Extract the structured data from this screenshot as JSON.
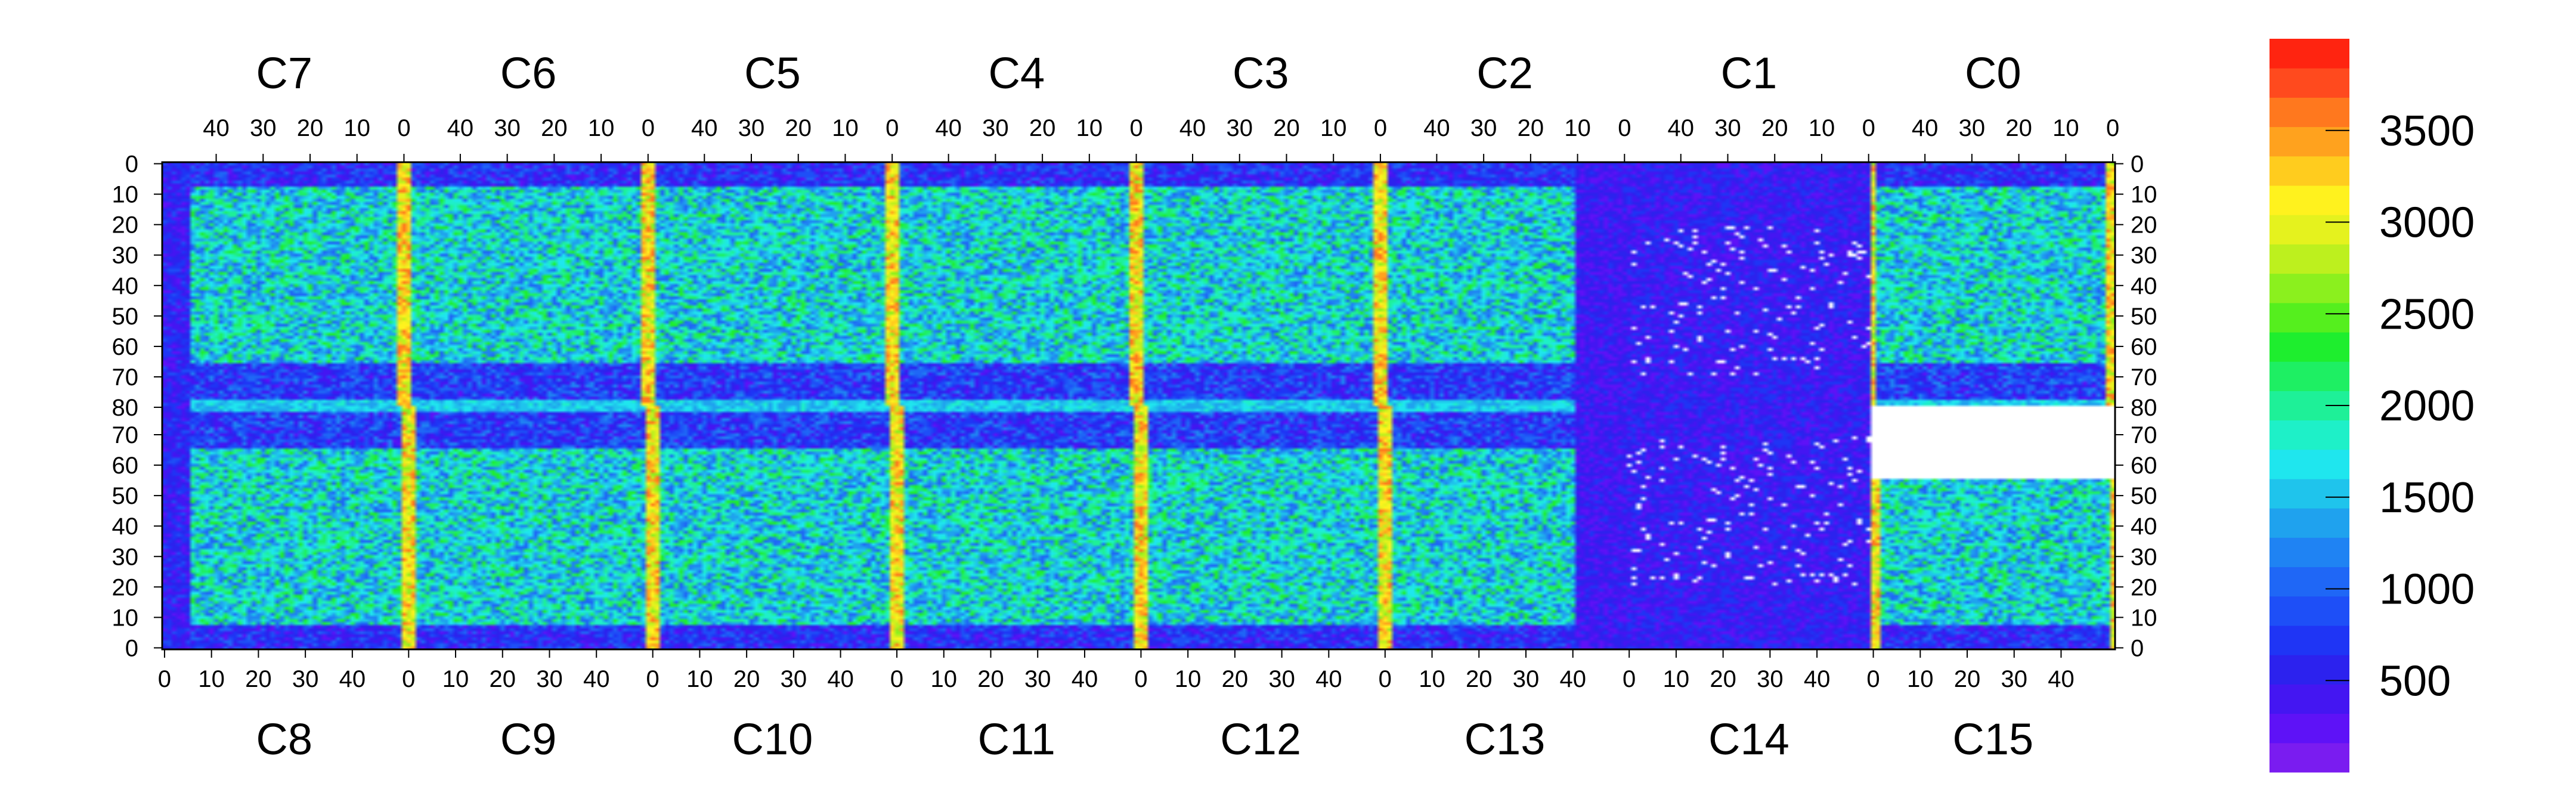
{
  "chart_data": {
    "type": "heatmap",
    "title": "",
    "xlabel": "",
    "ylabel": "",
    "top_chip_labels": [
      "C7",
      "C6",
      "C5",
      "C4",
      "C3",
      "C2",
      "C1",
      "C0"
    ],
    "bottom_chip_labels": [
      "C8",
      "C9",
      "C10",
      "C11",
      "C12",
      "C13",
      "C14",
      "C15"
    ],
    "chip_column_range": [
      0,
      51
    ],
    "chip_row_range": [
      0,
      79
    ],
    "x_tick_labels_top": [
      "40",
      "30",
      "20",
      "10",
      "0"
    ],
    "x_tick_labels_bottom": [
      "0",
      "10",
      "20",
      "30",
      "40"
    ],
    "y_tick_labels_top_half": [
      "0",
      "10",
      "20",
      "30",
      "40",
      "50",
      "60",
      "70",
      "80"
    ],
    "y_tick_labels_bottom_half": [
      "70",
      "60",
      "50",
      "40",
      "30",
      "20",
      "10",
      "0"
    ],
    "colorbar": {
      "min": 0,
      "max": 4000,
      "tick_values": [
        500,
        1000,
        1500,
        2000,
        2500,
        3000,
        3500
      ],
      "tick_labels": [
        "500",
        "1000",
        "1500",
        "2000",
        "2500",
        "3000",
        "3500"
      ],
      "palette": [
        "#7a1cf0",
        "#5e12f7",
        "#4416f2",
        "#2c22ee",
        "#1f35f5",
        "#1e4ff7",
        "#1f67f6",
        "#1f83f3",
        "#1fa2ee",
        "#1fc4ec",
        "#1fe6ee",
        "#1ef0c8",
        "#1ef098",
        "#1eef63",
        "#1eee2e",
        "#55ef1e",
        "#8bf01e",
        "#bdf01e",
        "#e5f21e",
        "#fff21e",
        "#ffcc1e",
        "#ffa21e",
        "#ff781e",
        "#ff4a1e",
        "#ff2410"
      ]
    },
    "regions": {
      "hot_column_pixels": [
        0,
        51
      ],
      "bright_row_pixel": 79,
      "low_band_rows": [
        65,
        79
      ],
      "masked_white_chips": [
        "C14",
        "C15"
      ],
      "typical_value_active": 1800,
      "typical_value_edge": 3300,
      "typical_value_low": 300
    }
  }
}
